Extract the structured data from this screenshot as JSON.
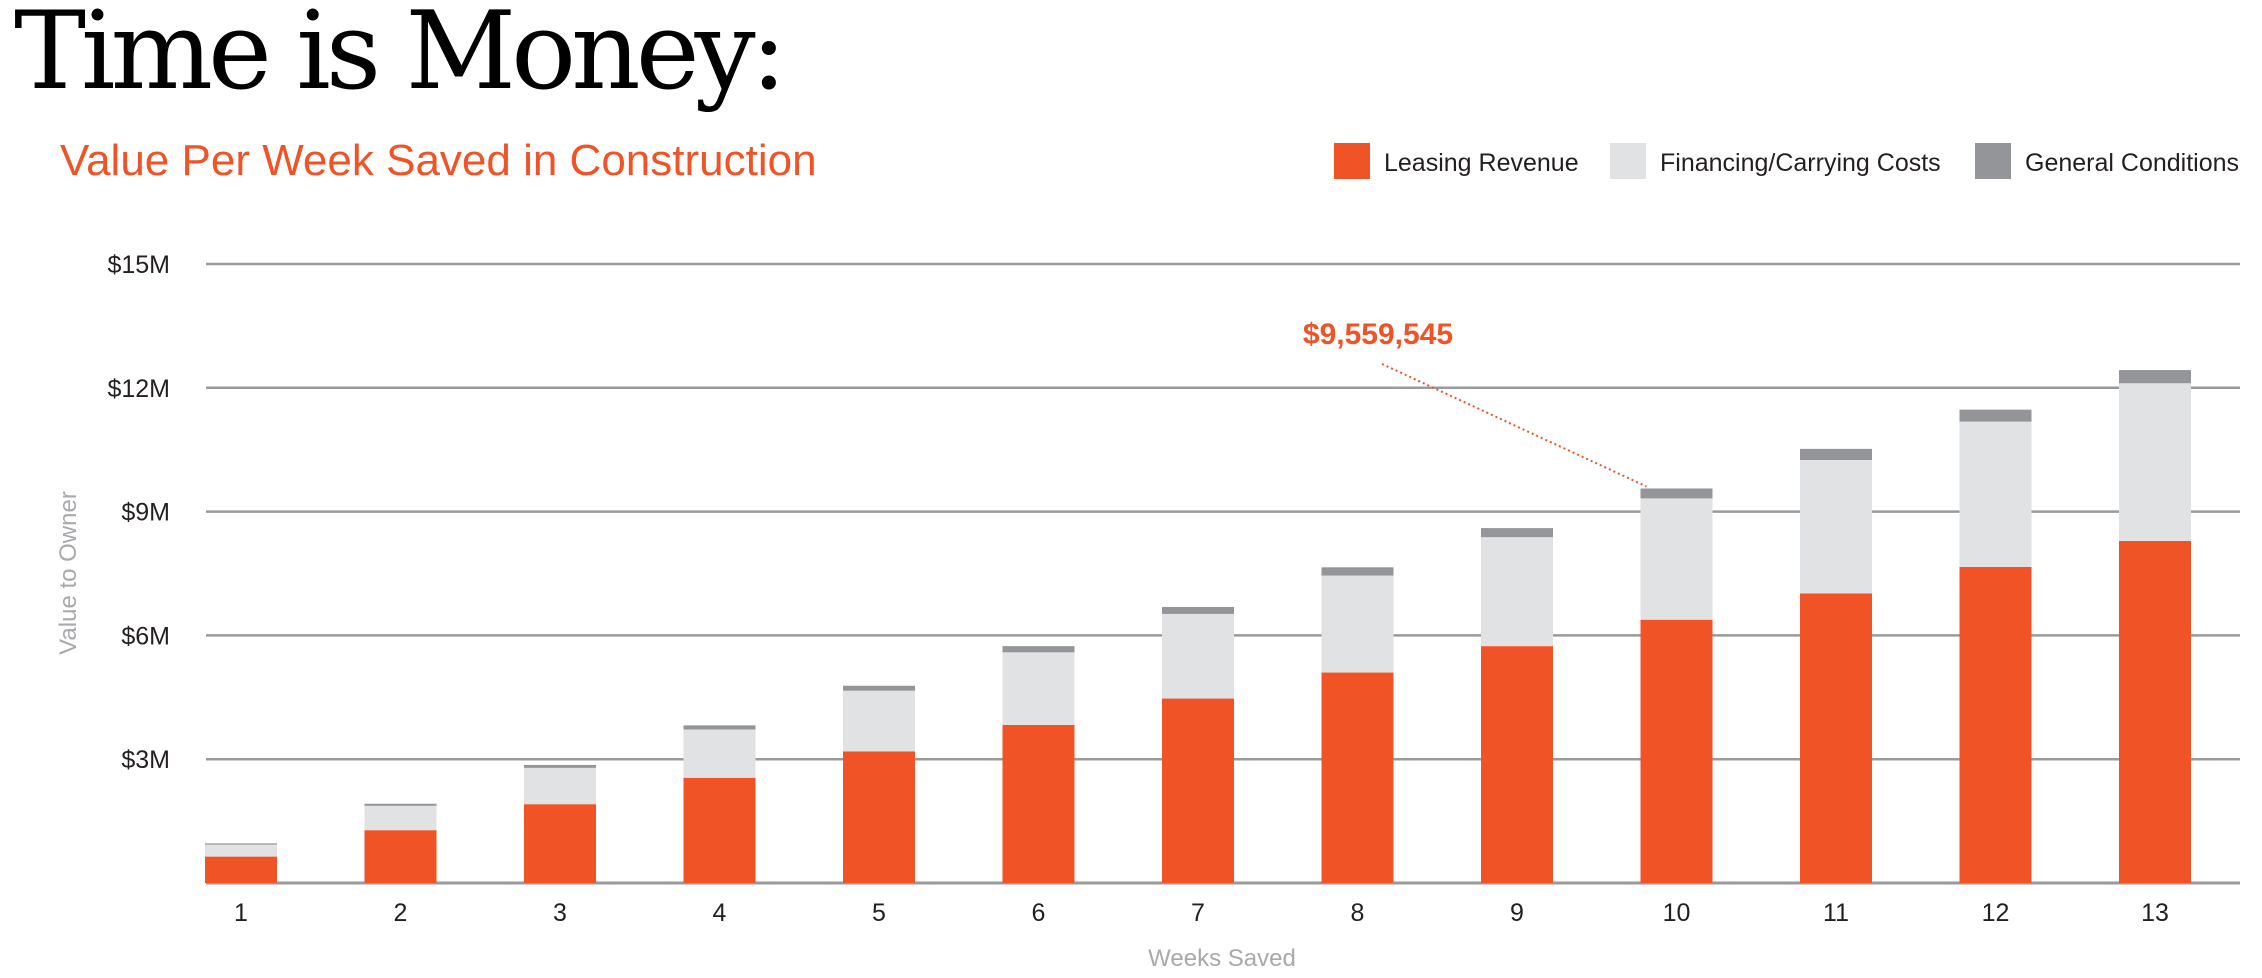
{
  "title": "Time is Money:",
  "colors": {
    "leasing": "#F05325",
    "financing": "#E1E2E3",
    "general": "#939598",
    "grid": "#9a9a9a",
    "accent": "#F05325"
  },
  "chart_data": {
    "type": "bar",
    "stacked": true,
    "title": "Value Per Week Saved in Construction",
    "xlabel": "Weeks Saved",
    "ylabel": "Value to Owner",
    "categories": [
      "1",
      "2",
      "3",
      "4",
      "5",
      "6",
      "7",
      "8",
      "9",
      "10",
      "11",
      "12",
      "13"
    ],
    "ylim": [
      0,
      15
    ],
    "yticks": [
      {
        "value": 3,
        "label": "$3M"
      },
      {
        "value": 6,
        "label": "$6M"
      },
      {
        "value": 9,
        "label": "$9M"
      },
      {
        "value": 12,
        "label": "$12M"
      },
      {
        "value": 15,
        "label": "$15M"
      }
    ],
    "grid": true,
    "legend_position": "top-right",
    "series": [
      {
        "name": "Leasing Revenue",
        "color": "#F05325",
        "values": [
          0.64,
          1.28,
          1.91,
          2.55,
          3.19,
          3.83,
          4.47,
          5.1,
          5.74,
          6.38,
          7.02,
          7.66,
          8.29
        ]
      },
      {
        "name": "Financing/Carrying Costs",
        "color": "#E1E2E3",
        "values": [
          0.29,
          0.59,
          0.88,
          1.17,
          1.47,
          1.76,
          2.05,
          2.35,
          2.64,
          2.94,
          3.23,
          3.52,
          3.82
        ]
      },
      {
        "name": "General Conditions",
        "color": "#939598",
        "values": [
          0.03,
          0.05,
          0.07,
          0.1,
          0.12,
          0.15,
          0.17,
          0.2,
          0.22,
          0.24,
          0.27,
          0.29,
          0.32
        ]
      }
    ],
    "annotations": [
      {
        "category": "10",
        "text": "$9,559,545"
      }
    ]
  }
}
